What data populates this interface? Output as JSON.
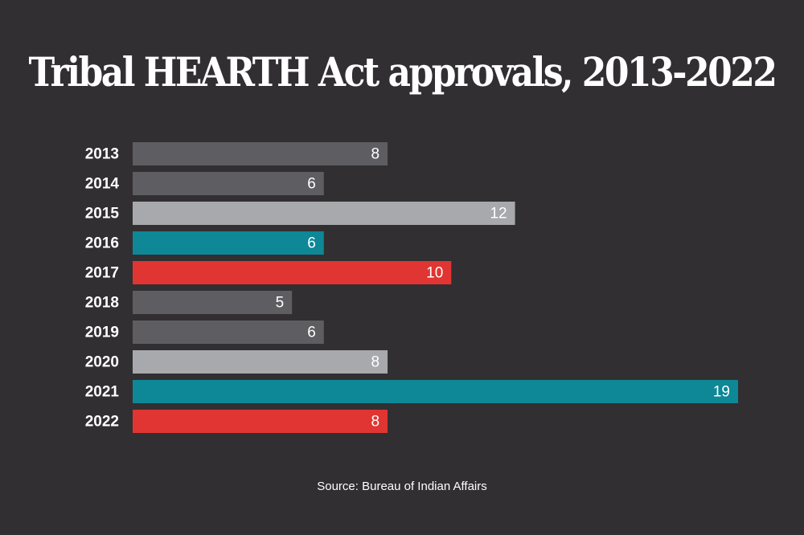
{
  "chart_data": {
    "type": "bar",
    "orientation": "horizontal",
    "title": "Tribal HEARTH Act approvals, 2013-2022",
    "source": "Source: Bureau of Indian Affairs",
    "categories": [
      "2013",
      "2014",
      "2015",
      "2016",
      "2017",
      "2018",
      "2019",
      "2020",
      "2021",
      "2022"
    ],
    "values": [
      8,
      6,
      12,
      6,
      10,
      5,
      6,
      8,
      19,
      8
    ],
    "bar_colors": [
      "#5e5d61",
      "#5e5d61",
      "#a7a9ac",
      "#0e8796",
      "#e03532",
      "#5e5d61",
      "#5e5d61",
      "#a7a9ac",
      "#0e8796",
      "#e03532"
    ],
    "xlim": [
      0,
      19
    ],
    "grid": false,
    "legend": "none",
    "data_labels": true
  },
  "colors": {
    "background": "#312f31",
    "text": "#ffffff"
  }
}
